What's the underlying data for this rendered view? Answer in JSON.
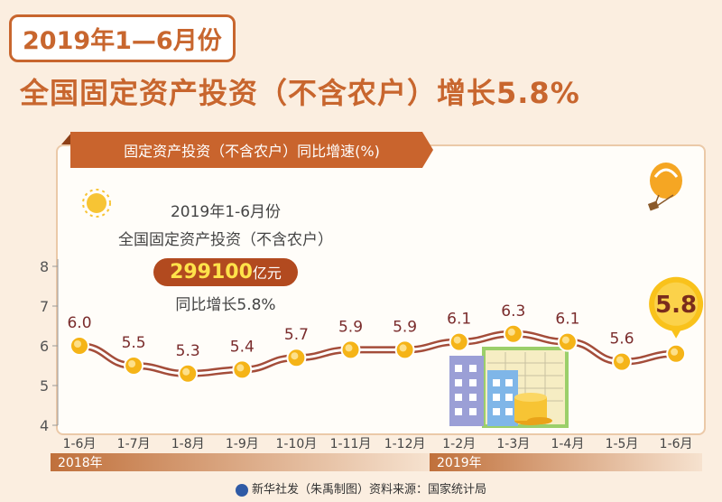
{
  "header": {
    "line1": "2019年1—6月份",
    "line2": "全国固定资产投资（不含农户）增长5.8%"
  },
  "panel": {
    "tab_label": "固定资产投资（不含农户）同比增速(%)"
  },
  "info": {
    "line1": "2019年1-6月份",
    "line2": "全国固定资产投资（不含农户）",
    "amount": "299100",
    "amount_unit": "亿元",
    "line4": "同比增长5.8%"
  },
  "periods": {
    "y2018": "2018年",
    "y2019": "2019年"
  },
  "footer": {
    "text": "新华社发（朱禹制图）资料来源：国家统计局"
  },
  "colors": {
    "accent": "#c8662e",
    "line": "#a44d3a",
    "point": "#f5b418",
    "highlight": "#f9c21b"
  },
  "chart_data": {
    "type": "line",
    "title": "固定资产投资（不含农户）同比增速(%)",
    "categories": [
      "1-6月",
      "1-7月",
      "1-8月",
      "1-9月",
      "1-10月",
      "1-11月",
      "1-12月",
      "1-2月",
      "1-3月",
      "1-4月",
      "1-5月",
      "1-6月"
    ],
    "values": [
      6.0,
      5.5,
      5.3,
      5.4,
      5.7,
      5.9,
      5.9,
      6.1,
      6.3,
      6.1,
      5.6,
      5.8
    ],
    "labels": [
      "6.0",
      "5.5",
      "5.3",
      "5.4",
      "5.7",
      "5.9",
      "5.9",
      "6.1",
      "6.3",
      "6.1",
      "5.6",
      "5.8"
    ],
    "yticks": [
      "4",
      "5",
      "6",
      "7",
      "8"
    ],
    "ylim": [
      4,
      8
    ],
    "highlight_label": "5.8",
    "grid": false
  }
}
